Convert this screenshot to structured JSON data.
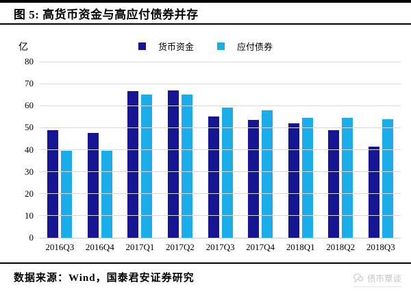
{
  "header": {
    "title": "图 5: 高货币资金与高应付债券并存"
  },
  "chart_data": {
    "type": "bar",
    "title": "图 5: 高货币资金与高应付债券并存",
    "unit_label": "亿",
    "categories": [
      "2016Q3",
      "2016Q4",
      "2017Q1",
      "2017Q2",
      "2017Q3",
      "2017Q4",
      "2018Q1",
      "2018Q2",
      "2018Q3"
    ],
    "series": [
      {
        "name": "货币资金",
        "color": "#161695",
        "values": [
          49,
          47.5,
          66.5,
          67,
          55,
          53.5,
          52,
          49,
          41.5
        ]
      },
      {
        "name": "应付债券",
        "color": "#1badе9",
        "values": [
          39.5,
          39.5,
          65,
          65,
          59,
          58,
          54.5,
          54.5,
          54
        ]
      }
    ],
    "series_colors": {
      "monetary_funds": "#161695",
      "bonds_payable": "#1bade9"
    },
    "ylim": [
      0,
      80
    ],
    "yticks": [
      0,
      10,
      20,
      30,
      40,
      50,
      60,
      70,
      80
    ],
    "grid": true,
    "legend_position": "top"
  },
  "footer": {
    "source": "数据来源：Wind，国泰君安证券研究",
    "watermark": "债市覃谈",
    "watermark_icon": "chat-bubbles-icon"
  }
}
